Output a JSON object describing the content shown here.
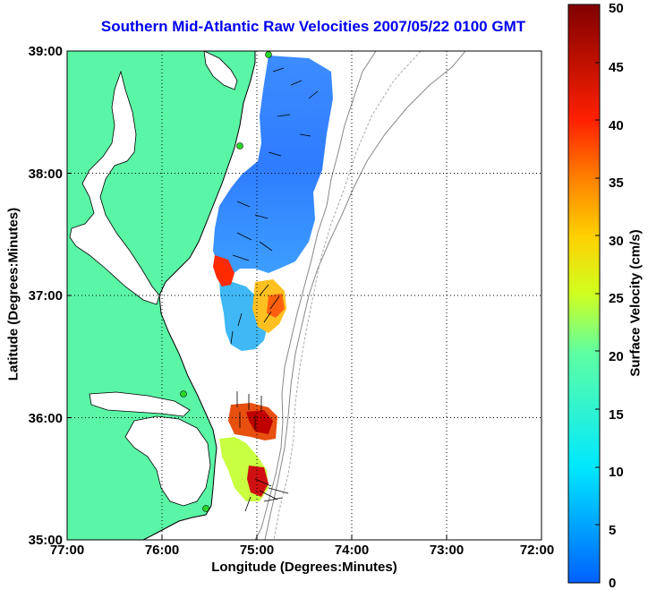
{
  "title": "Southern Mid-Atlantic Raw Velocities 2007/05/22 0100 GMT",
  "xlabel": "Longitude (Degrees:Minutes)",
  "ylabel": "Latitude (Degrees:Minutes)",
  "colorbar": {
    "label": "Surface Velocity (cm/s)",
    "ticks": [
      "0",
      "5",
      "10",
      "15",
      "20",
      "25",
      "30",
      "35",
      "40",
      "45",
      "50"
    ],
    "range": [
      0,
      50
    ]
  },
  "map": {
    "x_ticks": [
      "77:00",
      "76:00",
      "75:00",
      "74:00",
      "73:00",
      "72:00"
    ],
    "y_ticks": [
      "39:00",
      "38:00",
      "37:00",
      "36:00",
      "35:00"
    ],
    "lon_range": [
      -77,
      -72
    ],
    "lat_range": [
      35,
      39
    ],
    "land_color": "#5af5a5",
    "grid": "dotted"
  }
}
